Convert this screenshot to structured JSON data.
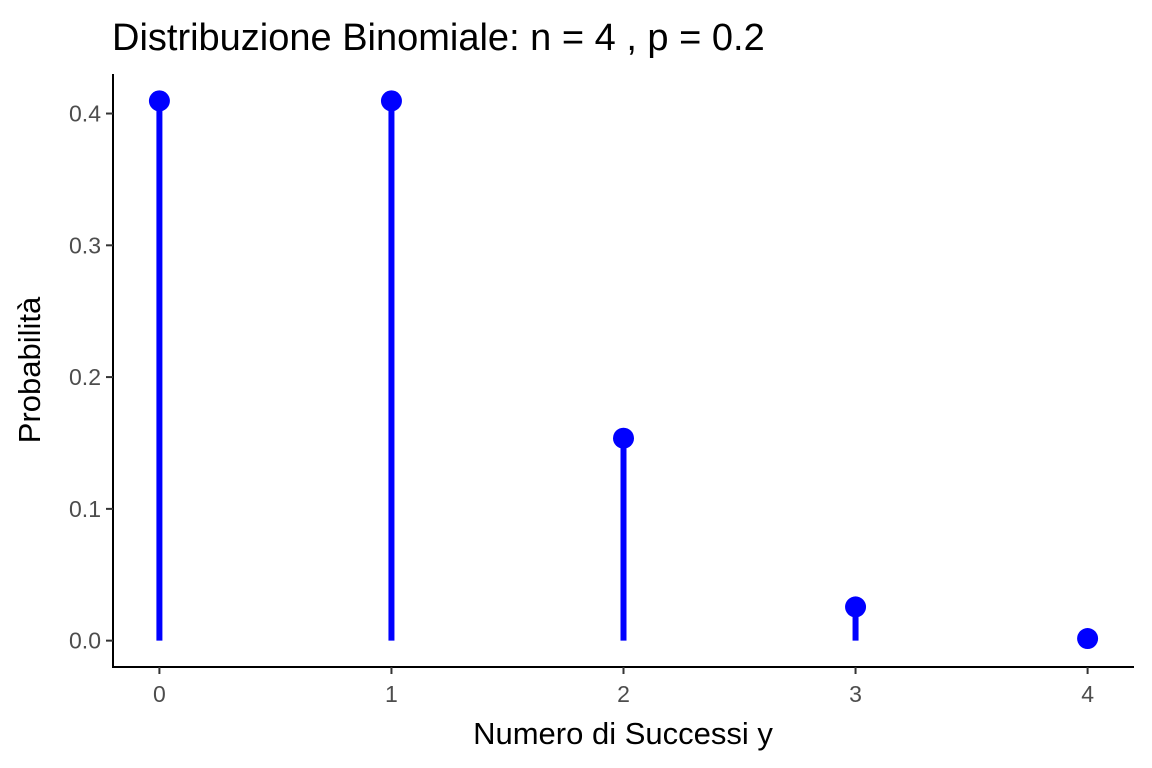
{
  "chart_data": {
    "type": "lollipop",
    "title": "Distribuzione Binomiale: n = 4 , p = 0.2",
    "xlabel": "Numero di Successi y",
    "ylabel": "Probabilità",
    "x": [
      0,
      1,
      2,
      3,
      4
    ],
    "values": [
      0.4096,
      0.4096,
      0.1536,
      0.0256,
      0.0016
    ],
    "xticks": [
      "0",
      "1",
      "2",
      "3",
      "4"
    ],
    "yticks": [
      "0.0",
      "0.1",
      "0.2",
      "0.3",
      "0.4"
    ],
    "ytick_values": [
      0.0,
      0.1,
      0.2,
      0.3,
      0.4
    ],
    "xlim": [
      -0.2,
      4.2
    ],
    "ylim": [
      -0.02,
      0.43
    ],
    "grid": false,
    "legend": "none",
    "color": "#0000ff"
  }
}
